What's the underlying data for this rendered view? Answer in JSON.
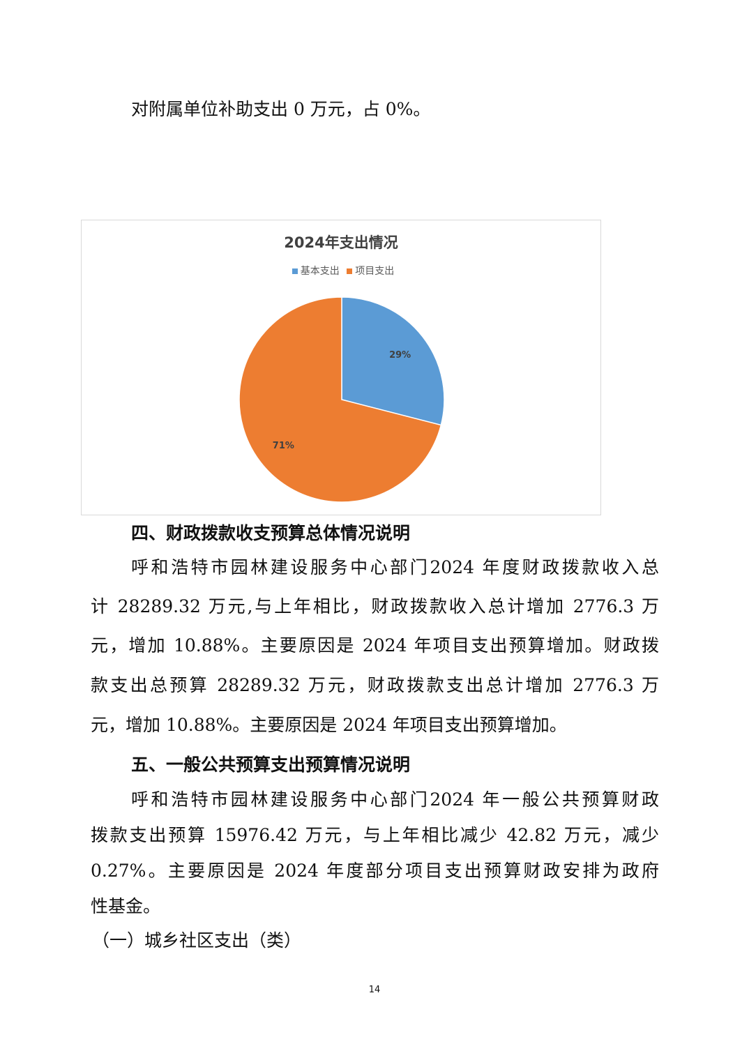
{
  "paragraph_top": "对附属单位补助支出 0 万元，占 0%。",
  "chart_data": {
    "type": "pie",
    "title": "2024年支出情况",
    "categories": [
      "基本支出",
      "项目支出"
    ],
    "values": [
      29,
      71
    ],
    "labels": [
      "29%",
      "71%"
    ],
    "colors": [
      "#5B9BD5",
      "#ED7D31"
    ],
    "legend_position": "top"
  },
  "section4": {
    "heading": "四、财政拨款收支预算总体情况说明",
    "lines": [
      "呼和浩特市园林建设服务中心部门2024 年度财政拨款收入总",
      "计 28289.32 万元,与上年相比，财政拨款收入总计增加 2776.3 万",
      "元，增加 10.88%。主要原因是 2024 年项目支出预算增加。财政拨",
      "款支出总预算 28289.32 万元，财政拨款支出总计增加 2776.3 万",
      "元，增加 10.88%。主要原因是 2024 年项目支出预算增加。"
    ]
  },
  "section5": {
    "heading": "五、一般公共预算支出预算情况说明",
    "lines": [
      "呼和浩特市园林建设服务中心部门2024 年一般公共预算财政",
      "拨款支出预算 15976.42 万元，与上年相比减少 42.82 万元，减少",
      "0.27%。主要原因是 2024 年度部分项目支出预算财政安排为政府",
      "性基金。"
    ],
    "subheading": "（一）城乡社区支出（类）"
  },
  "page_number": "14"
}
